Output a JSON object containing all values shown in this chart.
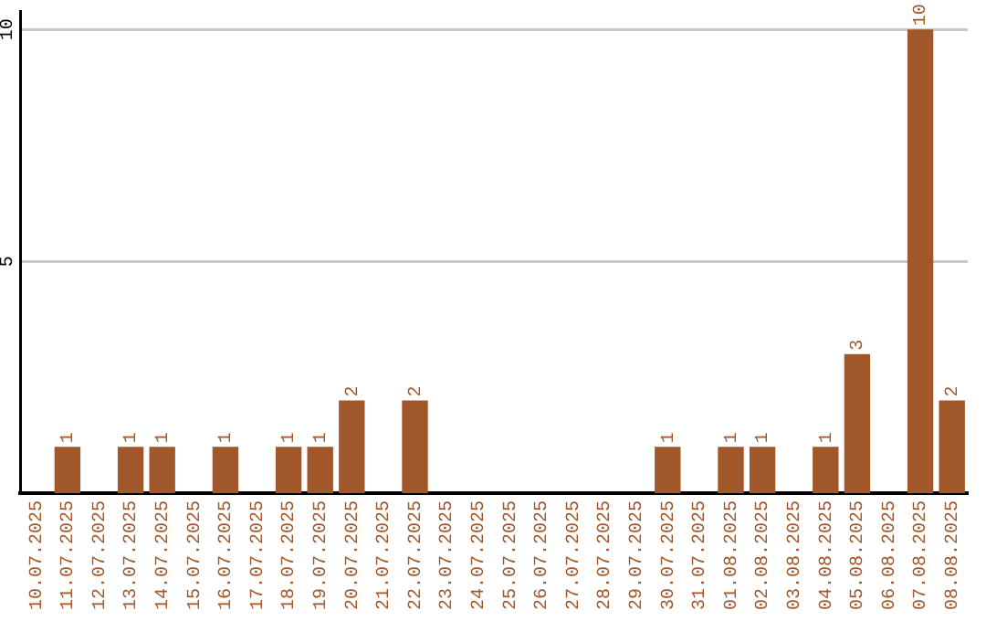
{
  "chart_data": {
    "type": "bar",
    "categories": [
      "10.07.2025",
      "11.07.2025",
      "12.07.2025",
      "13.07.2025",
      "14.07.2025",
      "15.07.2025",
      "16.07.2025",
      "17.07.2025",
      "18.07.2025",
      "19.07.2025",
      "20.07.2025",
      "21.07.2025",
      "22.07.2025",
      "23.07.2025",
      "24.07.2025",
      "25.07.2025",
      "26.07.2025",
      "27.07.2025",
      "28.07.2025",
      "29.07.2025",
      "30.07.2025",
      "31.07.2025",
      "01.08.2025",
      "02.08.2025",
      "03.08.2025",
      "04.08.2025",
      "05.08.2025",
      "06.08.2025",
      "07.08.2025",
      "08.08.2025"
    ],
    "values": [
      0,
      1,
      0,
      1,
      1,
      0,
      1,
      0,
      1,
      1,
      2,
      0,
      2,
      0,
      0,
      0,
      0,
      0,
      0,
      0,
      1,
      0,
      1,
      1,
      0,
      1,
      3,
      0,
      10,
      2
    ],
    "value_labels": [
      null,
      "1",
      null,
      "1",
      "1",
      null,
      "1",
      null,
      "1",
      "1",
      "2",
      null,
      "2",
      null,
      null,
      null,
      null,
      null,
      null,
      null,
      "1",
      null,
      "1",
      "1",
      null,
      "1",
      "3",
      null,
      "10",
      "2"
    ],
    "color": "#a0572a",
    "ylim": [
      0,
      10.4
    ],
    "yticks": [
      5,
      10
    ],
    "grid": "y",
    "legend": false
  }
}
